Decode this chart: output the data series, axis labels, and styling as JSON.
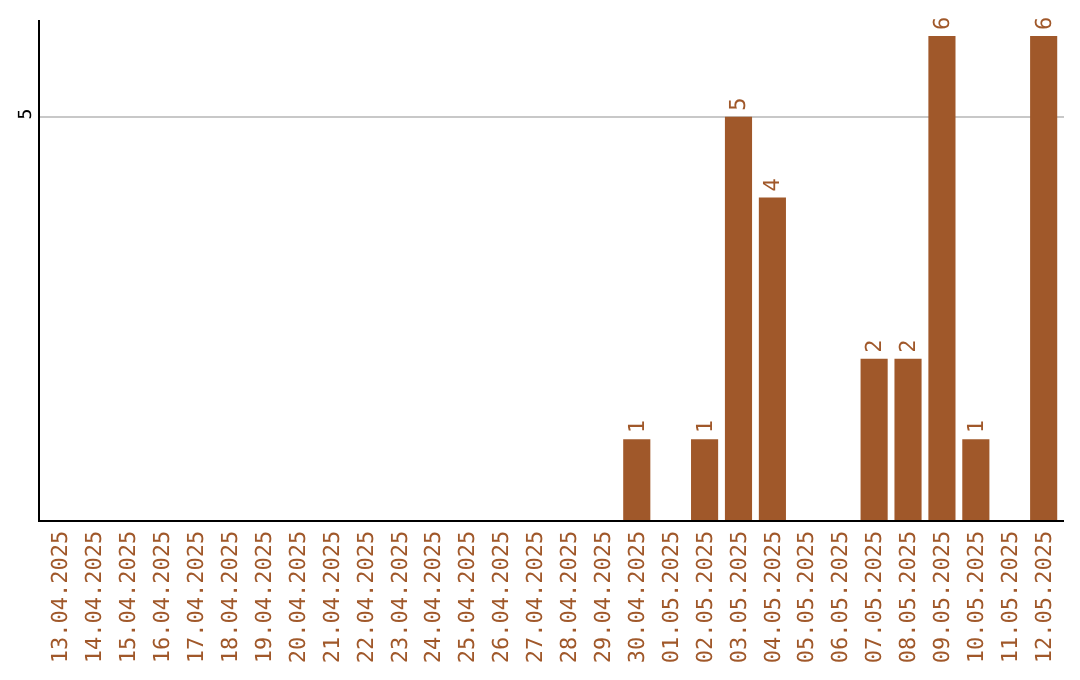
{
  "chart_data": {
    "type": "bar",
    "categories": [
      "13.04.2025",
      "14.04.2025",
      "15.04.2025",
      "16.04.2025",
      "17.04.2025",
      "18.04.2025",
      "19.04.2025",
      "20.04.2025",
      "21.04.2025",
      "22.04.2025",
      "23.04.2025",
      "24.04.2025",
      "25.04.2025",
      "26.04.2025",
      "27.04.2025",
      "28.04.2025",
      "29.04.2025",
      "30.04.2025",
      "01.05.2025",
      "02.05.2025",
      "03.05.2025",
      "04.05.2025",
      "05.05.2025",
      "06.05.2025",
      "07.05.2025",
      "08.05.2025",
      "09.05.2025",
      "10.05.2025",
      "11.05.2025",
      "12.05.2025"
    ],
    "values": [
      null,
      null,
      null,
      null,
      null,
      null,
      null,
      null,
      null,
      null,
      null,
      null,
      null,
      null,
      null,
      null,
      null,
      1,
      null,
      1,
      5,
      4,
      null,
      null,
      2,
      2,
      6,
      1,
      null,
      6
    ],
    "data_labels": true,
    "color": "#a0582a",
    "ylim": [
      0,
      6.2
    ],
    "yticks": [
      5
    ],
    "grid": "y"
  }
}
